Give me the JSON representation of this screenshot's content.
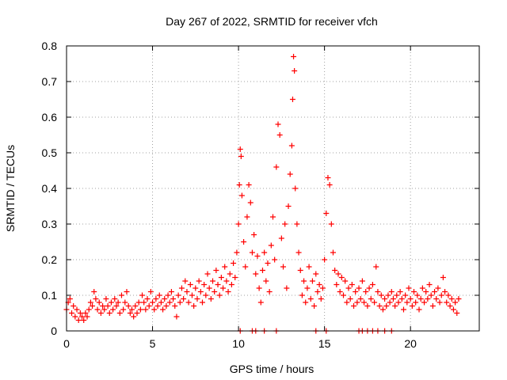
{
  "chart_data": {
    "type": "scatter",
    "title": "Day 267 of 2022, SRMTID for receiver vfch",
    "xlabel": "GPS time / hours",
    "ylabel": "SRMTID / TECUs",
    "xlim": [
      0,
      24
    ],
    "ylim": [
      0,
      0.8
    ],
    "xticks": [
      0,
      5,
      10,
      15,
      20
    ],
    "yticks": [
      0,
      0.1,
      0.2,
      0.3,
      0.4,
      0.5,
      0.6,
      0.7,
      0.8
    ],
    "xtick_labels": [
      "0",
      "5",
      "10",
      "15",
      "20"
    ],
    "ytick_labels": [
      "0",
      "0.1",
      "0.2",
      "0.3",
      "0.4",
      "0.5",
      "0.6",
      "0.7",
      "0.8"
    ],
    "grid": true,
    "marker": "plus",
    "color": "#ff0000",
    "series": [
      {
        "name": "SRMTID",
        "points": [
          [
            0.0,
            0.06
          ],
          [
            0.1,
            0.08
          ],
          [
            0.2,
            0.09
          ],
          [
            0.3,
            0.05
          ],
          [
            0.4,
            0.07
          ],
          [
            0.5,
            0.04
          ],
          [
            0.6,
            0.06
          ],
          [
            0.7,
            0.03
          ],
          [
            0.8,
            0.05
          ],
          [
            0.9,
            0.04
          ],
          [
            1.0,
            0.03
          ],
          [
            1.1,
            0.05
          ],
          [
            1.2,
            0.04
          ],
          [
            1.3,
            0.06
          ],
          [
            1.4,
            0.08
          ],
          [
            1.5,
            0.07
          ],
          [
            1.6,
            0.11
          ],
          [
            1.7,
            0.09
          ],
          [
            1.8,
            0.06
          ],
          [
            1.9,
            0.08
          ],
          [
            2.0,
            0.05
          ],
          [
            2.1,
            0.07
          ],
          [
            2.2,
            0.06
          ],
          [
            2.3,
            0.09
          ],
          [
            2.4,
            0.07
          ],
          [
            2.5,
            0.05
          ],
          [
            2.6,
            0.08
          ],
          [
            2.7,
            0.06
          ],
          [
            2.8,
            0.09
          ],
          [
            2.9,
            0.07
          ],
          [
            3.0,
            0.08
          ],
          [
            3.1,
            0.05
          ],
          [
            3.2,
            0.1
          ],
          [
            3.3,
            0.06
          ],
          [
            3.4,
            0.08
          ],
          [
            3.5,
            0.11
          ],
          [
            3.6,
            0.07
          ],
          [
            3.7,
            0.05
          ],
          [
            3.8,
            0.06
          ],
          [
            3.9,
            0.04
          ],
          [
            4.0,
            0.07
          ],
          [
            4.1,
            0.05
          ],
          [
            4.2,
            0.08
          ],
          [
            4.3,
            0.06
          ],
          [
            4.4,
            0.1
          ],
          [
            4.5,
            0.08
          ],
          [
            4.6,
            0.06
          ],
          [
            4.7,
            0.09
          ],
          [
            4.8,
            0.07
          ],
          [
            4.9,
            0.11
          ],
          [
            5.0,
            0.08
          ],
          [
            5.1,
            0.06
          ],
          [
            5.2,
            0.09
          ],
          [
            5.3,
            0.07
          ],
          [
            5.4,
            0.1
          ],
          [
            5.5,
            0.08
          ],
          [
            5.6,
            0.06
          ],
          [
            5.7,
            0.09
          ],
          [
            5.8,
            0.07
          ],
          [
            5.9,
            0.1
          ],
          [
            6.0,
            0.08
          ],
          [
            6.1,
            0.11
          ],
          [
            6.2,
            0.09
          ],
          [
            6.3,
            0.07
          ],
          [
            6.4,
            0.04
          ],
          [
            6.5,
            0.1
          ],
          [
            6.6,
            0.08
          ],
          [
            6.7,
            0.12
          ],
          [
            6.8,
            0.09
          ],
          [
            6.9,
            0.14
          ],
          [
            7.0,
            0.11
          ],
          [
            7.1,
            0.08
          ],
          [
            7.2,
            0.13
          ],
          [
            7.3,
            0.1
          ],
          [
            7.4,
            0.07
          ],
          [
            7.5,
            0.12
          ],
          [
            7.6,
            0.09
          ],
          [
            7.7,
            0.14
          ],
          [
            7.8,
            0.11
          ],
          [
            7.9,
            0.08
          ],
          [
            8.0,
            0.13
          ],
          [
            8.1,
            0.1
          ],
          [
            8.2,
            0.16
          ],
          [
            8.3,
            0.12
          ],
          [
            8.4,
            0.09
          ],
          [
            8.5,
            0.14
          ],
          [
            8.6,
            0.11
          ],
          [
            8.7,
            0.17
          ],
          [
            8.8,
            0.13
          ],
          [
            8.9,
            0.1
          ],
          [
            9.0,
            0.15
          ],
          [
            9.1,
            0.12
          ],
          [
            9.2,
            0.18
          ],
          [
            9.3,
            0.14
          ],
          [
            9.4,
            0.11
          ],
          [
            9.5,
            0.16
          ],
          [
            9.6,
            0.13
          ],
          [
            9.7,
            0.19
          ],
          [
            9.8,
            0.15
          ],
          [
            9.9,
            0.22
          ],
          [
            10.0,
            0.3
          ],
          [
            10.05,
            0.41
          ],
          [
            10.1,
            0.51
          ],
          [
            10.15,
            0.49
          ],
          [
            10.2,
            0.38
          ],
          [
            10.3,
            0.25
          ],
          [
            10.4,
            0.18
          ],
          [
            10.5,
            0.32
          ],
          [
            10.6,
            0.41
          ],
          [
            10.7,
            0.36
          ],
          [
            10.8,
            0.22
          ],
          [
            10.9,
            0.27
          ],
          [
            11.0,
            0.16
          ],
          [
            11.1,
            0.21
          ],
          [
            11.2,
            0.12
          ],
          [
            11.3,
            0.08
          ],
          [
            11.4,
            0.17
          ],
          [
            11.5,
            0.22
          ],
          [
            11.6,
            0.14
          ],
          [
            11.7,
            0.19
          ],
          [
            11.8,
            0.11
          ],
          [
            11.9,
            0.24
          ],
          [
            12.0,
            0.32
          ],
          [
            12.1,
            0.2
          ],
          [
            12.2,
            0.46
          ],
          [
            12.3,
            0.58
          ],
          [
            12.4,
            0.55
          ],
          [
            12.5,
            0.26
          ],
          [
            12.6,
            0.18
          ],
          [
            12.7,
            0.3
          ],
          [
            12.8,
            0.12
          ],
          [
            12.9,
            0.35
          ],
          [
            13.0,
            0.44
          ],
          [
            13.1,
            0.52
          ],
          [
            13.15,
            0.65
          ],
          [
            13.2,
            0.77
          ],
          [
            13.25,
            0.73
          ],
          [
            13.3,
            0.4
          ],
          [
            13.4,
            0.3
          ],
          [
            13.5,
            0.22
          ],
          [
            13.6,
            0.17
          ],
          [
            13.7,
            0.1
          ],
          [
            13.8,
            0.14
          ],
          [
            13.9,
            0.08
          ],
          [
            14.0,
            0.12
          ],
          [
            14.1,
            0.18
          ],
          [
            14.2,
            0.09
          ],
          [
            14.3,
            0.14
          ],
          [
            14.4,
            0.07
          ],
          [
            14.5,
            0.16
          ],
          [
            14.6,
            0.11
          ],
          [
            14.7,
            0.13
          ],
          [
            14.8,
            0.09
          ],
          [
            14.9,
            0.12
          ],
          [
            15.0,
            0.2
          ],
          [
            15.1,
            0.33
          ],
          [
            15.2,
            0.43
          ],
          [
            15.3,
            0.41
          ],
          [
            15.4,
            0.3
          ],
          [
            15.5,
            0.22
          ],
          [
            15.6,
            0.17
          ],
          [
            15.7,
            0.13
          ],
          [
            15.8,
            0.16
          ],
          [
            15.9,
            0.11
          ],
          [
            16.0,
            0.15
          ],
          [
            16.1,
            0.1
          ],
          [
            16.2,
            0.14
          ],
          [
            16.3,
            0.08
          ],
          [
            16.4,
            0.12
          ],
          [
            16.5,
            0.09
          ],
          [
            16.6,
            0.13
          ],
          [
            16.7,
            0.07
          ],
          [
            16.8,
            0.11
          ],
          [
            16.9,
            0.08
          ],
          [
            17.0,
            0.12
          ],
          [
            17.1,
            0.09
          ],
          [
            17.2,
            0.14
          ],
          [
            17.3,
            0.08
          ],
          [
            17.4,
            0.11
          ],
          [
            17.5,
            0.07
          ],
          [
            17.6,
            0.12
          ],
          [
            17.7,
            0.09
          ],
          [
            17.8,
            0.13
          ],
          [
            17.9,
            0.08
          ],
          [
            18.0,
            0.18
          ],
          [
            18.1,
            0.11
          ],
          [
            18.2,
            0.07
          ],
          [
            18.3,
            0.1
          ],
          [
            18.4,
            0.06
          ],
          [
            18.5,
            0.09
          ],
          [
            18.6,
            0.07
          ],
          [
            18.7,
            0.1
          ],
          [
            18.8,
            0.08
          ],
          [
            18.9,
            0.11
          ],
          [
            19.0,
            0.09
          ],
          [
            19.1,
            0.07
          ],
          [
            19.2,
            0.1
          ],
          [
            19.3,
            0.08
          ],
          [
            19.4,
            0.11
          ],
          [
            19.5,
            0.09
          ],
          [
            19.6,
            0.06
          ],
          [
            19.7,
            0.1
          ],
          [
            19.8,
            0.08
          ],
          [
            19.9,
            0.12
          ],
          [
            20.0,
            0.09
          ],
          [
            20.1,
            0.07
          ],
          [
            20.2,
            0.11
          ],
          [
            20.3,
            0.08
          ],
          [
            20.4,
            0.1
          ],
          [
            20.5,
            0.06
          ],
          [
            20.6,
            0.09
          ],
          [
            20.7,
            0.12
          ],
          [
            20.8,
            0.08
          ],
          [
            20.9,
            0.11
          ],
          [
            21.0,
            0.09
          ],
          [
            21.1,
            0.13
          ],
          [
            21.2,
            0.1
          ],
          [
            21.3,
            0.07
          ],
          [
            21.4,
            0.11
          ],
          [
            21.5,
            0.09
          ],
          [
            21.6,
            0.12
          ],
          [
            21.7,
            0.08
          ],
          [
            21.8,
            0.1
          ],
          [
            21.9,
            0.15
          ],
          [
            22.0,
            0.11
          ],
          [
            22.1,
            0.08
          ],
          [
            22.2,
            0.1
          ],
          [
            22.3,
            0.07
          ],
          [
            22.4,
            0.09
          ],
          [
            22.5,
            0.06
          ],
          [
            22.6,
            0.08
          ],
          [
            22.7,
            0.05
          ],
          [
            22.8,
            0.09
          ],
          [
            10.1,
            0.0
          ],
          [
            10.8,
            0.0
          ],
          [
            11.0,
            0.0
          ],
          [
            11.5,
            0.0
          ],
          [
            12.2,
            0.0
          ],
          [
            14.5,
            0.0
          ],
          [
            15.1,
            0.0
          ],
          [
            17.0,
            0.0
          ],
          [
            17.2,
            0.0
          ],
          [
            17.5,
            0.0
          ],
          [
            17.8,
            0.0
          ],
          [
            18.1,
            0.0
          ],
          [
            18.5,
            0.0
          ],
          [
            18.9,
            0.0
          ]
        ]
      }
    ]
  }
}
